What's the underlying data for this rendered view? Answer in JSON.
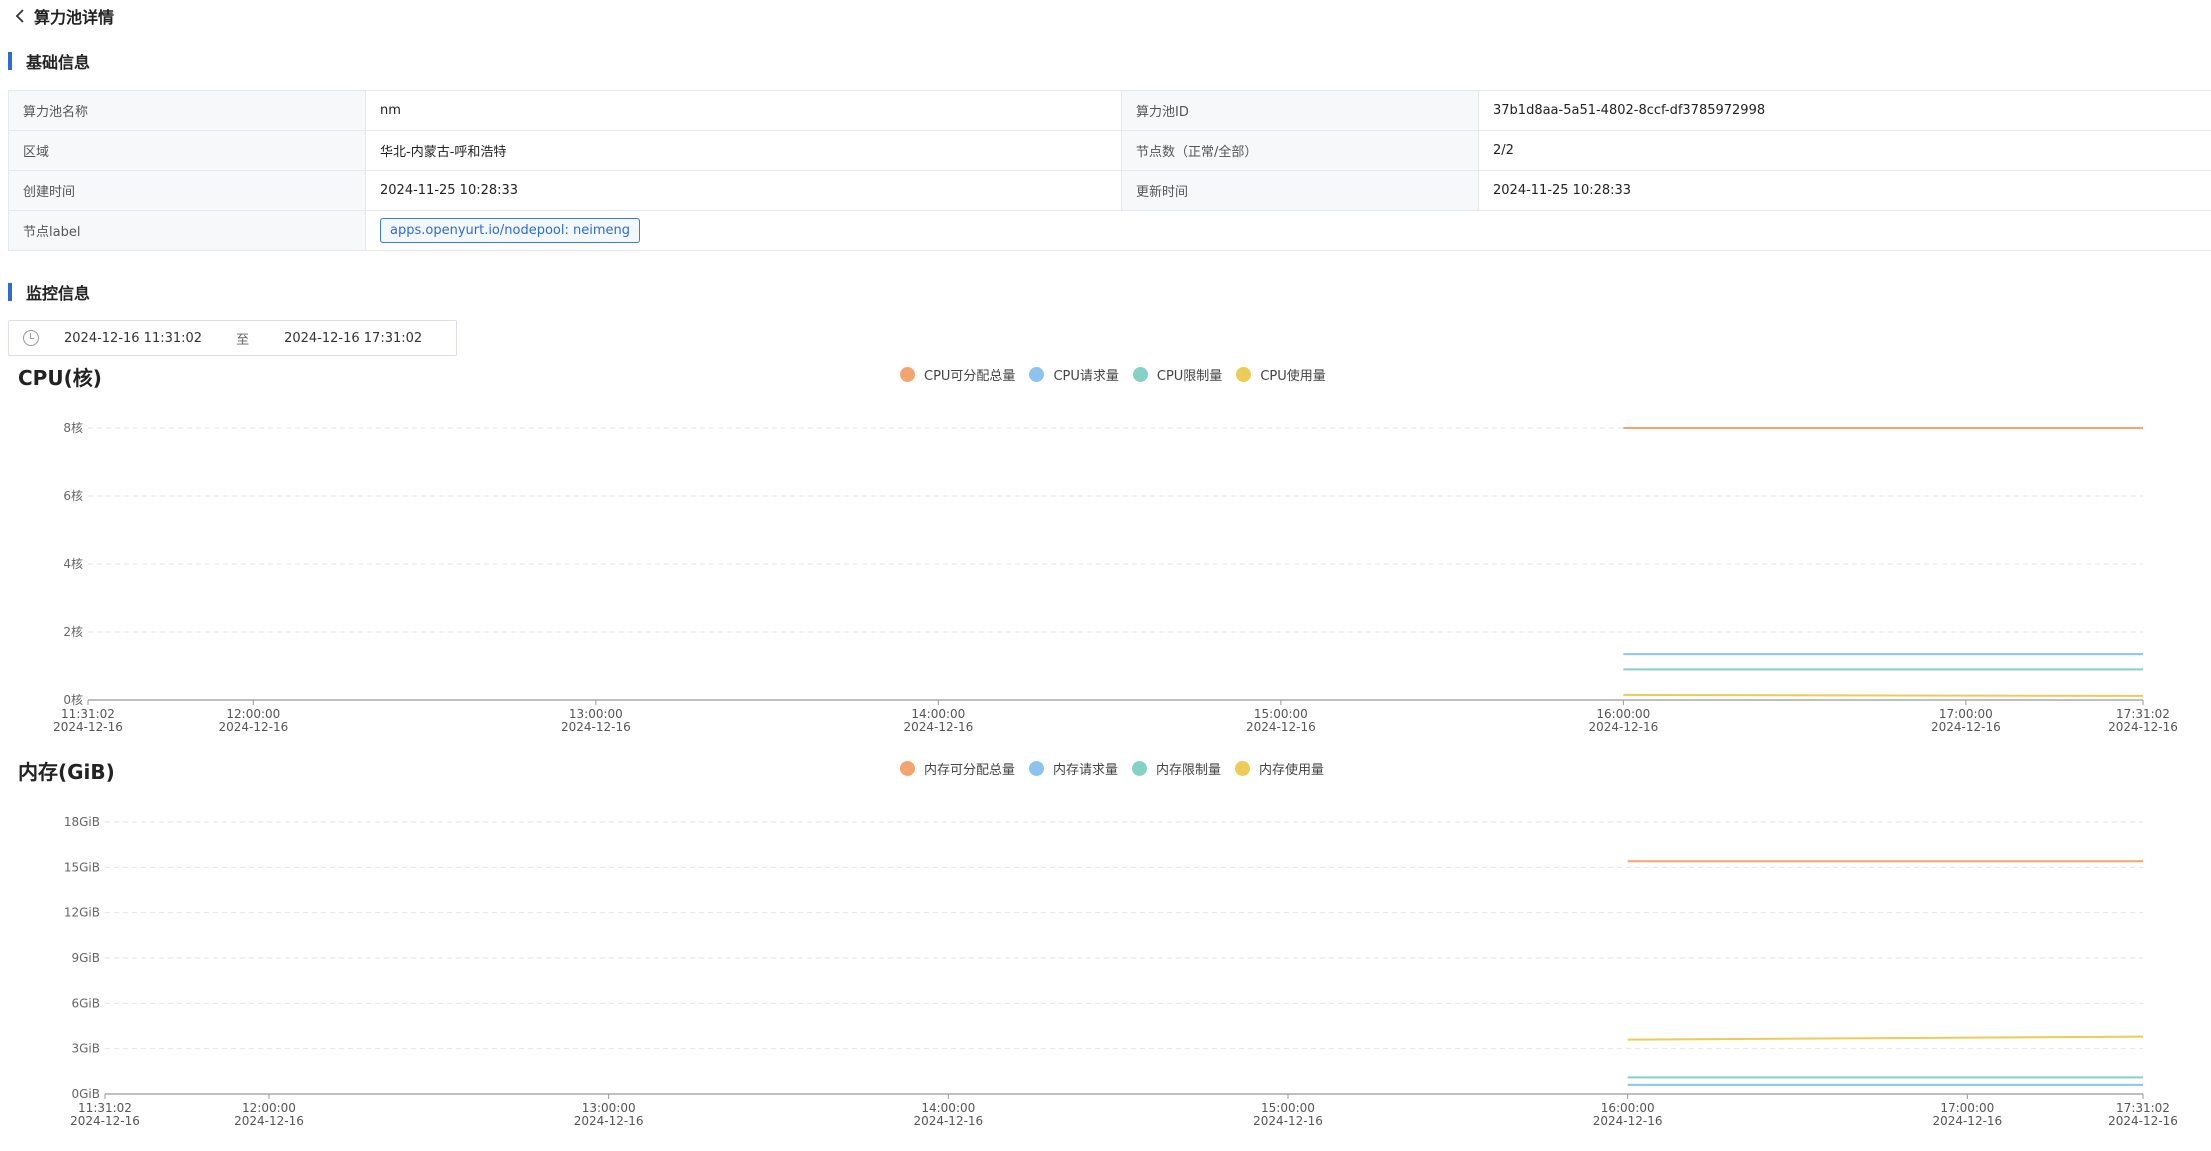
{
  "header": {
    "title": "算力池详情"
  },
  "basic": {
    "section_title": "基础信息",
    "rows": [
      {
        "k1": "算力池名称",
        "v1": "nm",
        "k2": "算力池ID",
        "v2": "37b1d8aa-5a51-4802-8ccf-df3785972998"
      },
      {
        "k1": "区域",
        "v1": "华北-内蒙古-呼和浩特",
        "k2": "节点数（正常/全部）",
        "v2": "2/2"
      },
      {
        "k1": "创建时间",
        "v1": "2024-11-25 10:28:33",
        "k2": "更新时间",
        "v2": "2024-11-25 10:28:33"
      }
    ],
    "label_row": {
      "k": "节点label",
      "tag": "apps.openyurt.io/nodepool: neimeng"
    }
  },
  "monitor": {
    "section_title": "监控信息",
    "range": {
      "start": "2024-12-16 11:31:02",
      "sep": "至",
      "end": "2024-12-16 17:31:02"
    }
  },
  "colors": {
    "accent": "#2f6bd6",
    "orange": "#f4a46f",
    "blue": "#8cc3ef",
    "teal": "#86d1c6",
    "yellow": "#eccb57"
  },
  "chart_data": [
    {
      "type": "line",
      "title": "CPU(核)",
      "x_ticks": [
        "11:31:02",
        "12:00:00",
        "13:00:00",
        "14:00:00",
        "15:00:00",
        "16:00:00",
        "17:00:00",
        "17:31:02"
      ],
      "x_date": "2024-12-16",
      "x_range": [
        "2024-12-16 11:31:02",
        "2024-12-16 17:31:02"
      ],
      "y_ticks": [
        "0核",
        "2核",
        "4核",
        "6核",
        "8核"
      ],
      "ylim": [
        0,
        8
      ],
      "grid": true,
      "legend_placement": "top-center",
      "series": [
        {
          "name": "CPU可分配总量",
          "color": "#f4a46f",
          "x": [
            "2024-12-16 16:00:00",
            "2024-12-16 17:31:02"
          ],
          "values": [
            8,
            8
          ]
        },
        {
          "name": "CPU请求量",
          "color": "#8cc3ef",
          "x": [
            "2024-12-16 16:00:00",
            "2024-12-16 17:31:02"
          ],
          "values": [
            1.35,
            1.35
          ]
        },
        {
          "name": "CPU限制量",
          "color": "#86d1c6",
          "x": [
            "2024-12-16 16:00:00",
            "2024-12-16 17:31:02"
          ],
          "values": [
            0.9,
            0.9
          ]
        },
        {
          "name": "CPU使用量",
          "color": "#eccb57",
          "x": [
            "2024-12-16 16:00:00",
            "2024-12-16 17:31:02"
          ],
          "values": [
            0.15,
            0.12
          ]
        }
      ]
    },
    {
      "type": "line",
      "title": "内存(GiB)",
      "x_ticks": [
        "11:31:02",
        "12:00:00",
        "13:00:00",
        "14:00:00",
        "15:00:00",
        "16:00:00",
        "17:00:00",
        "17:31:02"
      ],
      "x_date": "2024-12-16",
      "x_range": [
        "2024-12-16 11:31:02",
        "2024-12-16 17:31:02"
      ],
      "y_ticks": [
        "0GiB",
        "3GiB",
        "6GiB",
        "9GiB",
        "12GiB",
        "15GiB",
        "18GiB"
      ],
      "ylim": [
        0,
        18
      ],
      "grid": true,
      "legend_placement": "top-center",
      "series": [
        {
          "name": "内存可分配总量",
          "color": "#f4a46f",
          "x": [
            "2024-12-16 16:00:00",
            "2024-12-16 17:31:02"
          ],
          "values": [
            15.4,
            15.4
          ]
        },
        {
          "name": "内存请求量",
          "color": "#8cc3ef",
          "x": [
            "2024-12-16 16:00:00",
            "2024-12-16 17:31:02"
          ],
          "values": [
            0.6,
            0.6
          ]
        },
        {
          "name": "内存限制量",
          "color": "#86d1c6",
          "x": [
            "2024-12-16 16:00:00",
            "2024-12-16 17:31:02"
          ],
          "values": [
            1.1,
            1.1
          ]
        },
        {
          "name": "内存使用量",
          "color": "#eccb57",
          "x": [
            "2024-12-16 16:00:00",
            "2024-12-16 17:31:02"
          ],
          "values": [
            3.6,
            3.8
          ]
        }
      ]
    }
  ]
}
